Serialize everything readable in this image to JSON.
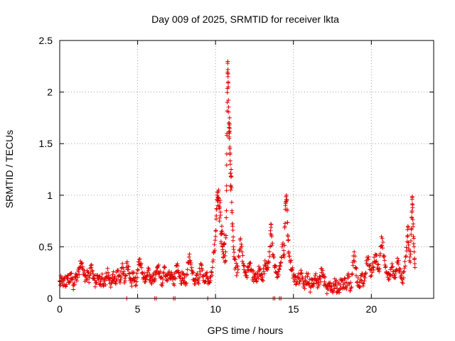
{
  "chart_data": {
    "type": "scatter",
    "title": "Day 009 of 2025, SRMTID for receiver lkta",
    "xlabel": "GPS time / hours",
    "ylabel": "SRMTID / TECUs",
    "xlim": [
      0,
      24
    ],
    "ylim": [
      0,
      2.5
    ],
    "xticks": [
      0,
      5,
      10,
      15,
      20
    ],
    "xtick_labels": [
      "0",
      "5",
      "10",
      "15",
      "20"
    ],
    "yticks": [
      0,
      0.5,
      1,
      1.5,
      2,
      2.5
    ],
    "ytick_labels": [
      "0",
      "0.5",
      "1",
      "1.5",
      "2",
      "2.5"
    ],
    "grid": true,
    "marker": "plus",
    "series": [
      {
        "name": "SRMTID",
        "color": "#e00000",
        "points": [
          [
            0.0,
            0.17
          ],
          [
            0.1,
            0.2
          ],
          [
            0.2,
            0.14
          ],
          [
            0.3,
            0.19
          ],
          [
            0.4,
            0.12
          ],
          [
            0.5,
            0.22
          ],
          [
            0.6,
            0.16
          ],
          [
            0.7,
            0.24
          ],
          [
            0.8,
            0.18
          ],
          [
            0.9,
            0.13
          ],
          [
            1.0,
            0.21
          ],
          [
            1.1,
            0.17
          ],
          [
            1.2,
            0.26
          ],
          [
            1.3,
            0.3
          ],
          [
            1.4,
            0.34
          ],
          [
            1.5,
            0.28
          ],
          [
            1.6,
            0.22
          ],
          [
            1.7,
            0.18
          ],
          [
            1.8,
            0.25
          ],
          [
            1.9,
            0.2
          ],
          [
            2.0,
            0.32
          ],
          [
            2.1,
            0.27
          ],
          [
            2.2,
            0.19
          ],
          [
            2.3,
            0.15
          ],
          [
            2.4,
            0.22
          ],
          [
            2.5,
            0.18
          ],
          [
            2.6,
            0.14
          ],
          [
            2.7,
            0.2
          ],
          [
            2.8,
            0.12
          ],
          [
            2.9,
            0.17
          ],
          [
            3.0,
            0.21
          ],
          [
            3.1,
            0.25
          ],
          [
            3.2,
            0.19
          ],
          [
            3.3,
            0.15
          ],
          [
            3.4,
            0.23
          ],
          [
            3.5,
            0.2
          ],
          [
            3.6,
            0.14
          ],
          [
            3.7,
            0.27
          ],
          [
            3.8,
            0.22
          ],
          [
            3.9,
            0.18
          ],
          [
            4.0,
            0.3
          ],
          [
            4.1,
            0.24
          ],
          [
            4.2,
            0.17
          ],
          [
            4.3,
            0.34
          ],
          [
            4.4,
            0.28
          ],
          [
            4.5,
            0.2
          ],
          [
            4.6,
            0.15
          ],
          [
            4.7,
            0.24
          ],
          [
            4.8,
            0.19
          ],
          [
            4.9,
            0.13
          ],
          [
            5.0,
            0.28
          ],
          [
            5.1,
            0.38
          ],
          [
            5.2,
            0.33
          ],
          [
            5.3,
            0.25
          ],
          [
            5.4,
            0.2
          ],
          [
            5.5,
            0.16
          ],
          [
            5.6,
            0.22
          ],
          [
            5.7,
            0.27
          ],
          [
            5.8,
            0.18
          ],
          [
            5.9,
            0.14
          ],
          [
            6.0,
            0.22
          ],
          [
            6.1,
            0.17
          ],
          [
            6.2,
            0.26
          ],
          [
            6.3,
            0.31
          ],
          [
            6.4,
            0.24
          ],
          [
            6.5,
            0.2
          ],
          [
            6.6,
            0.15
          ],
          [
            6.7,
            0.3
          ],
          [
            6.8,
            0.21
          ],
          [
            6.9,
            0.17
          ],
          [
            7.0,
            0.25
          ],
          [
            7.1,
            0.19
          ],
          [
            7.2,
            0.23
          ],
          [
            7.3,
            0.14
          ],
          [
            7.4,
            0.2
          ],
          [
            7.5,
            0.32
          ],
          [
            7.6,
            0.27
          ],
          [
            7.7,
            0.21
          ],
          [
            7.8,
            0.17
          ],
          [
            7.9,
            0.24
          ],
          [
            8.0,
            0.2
          ],
          [
            8.1,
            0.15
          ],
          [
            8.2,
            0.28
          ],
          [
            8.3,
            0.4
          ],
          [
            8.4,
            0.33
          ],
          [
            8.5,
            0.24
          ],
          [
            8.6,
            0.18
          ],
          [
            8.7,
            0.14
          ],
          [
            8.8,
            0.22
          ],
          [
            8.9,
            0.17
          ],
          [
            9.0,
            0.26
          ],
          [
            9.1,
            0.32
          ],
          [
            9.2,
            0.21
          ],
          [
            9.3,
            0.16
          ],
          [
            9.4,
            0.24
          ],
          [
            9.5,
            0.19
          ],
          [
            9.6,
            0.15
          ],
          [
            9.7,
            0.21
          ],
          [
            9.8,
            0.3
          ],
          [
            9.9,
            0.45
          ],
          [
            10.0,
            0.6
          ],
          [
            10.05,
            0.8
          ],
          [
            10.1,
            1.0
          ],
          [
            10.15,
            0.9
          ],
          [
            10.2,
            1.05
          ],
          [
            10.25,
            0.75
          ],
          [
            10.3,
            0.95
          ],
          [
            10.35,
            0.55
          ],
          [
            10.4,
            0.7
          ],
          [
            10.45,
            0.5
          ],
          [
            10.5,
            0.4
          ],
          [
            10.55,
            0.62
          ],
          [
            10.6,
            0.35
          ],
          [
            10.65,
            0.45
          ],
          [
            10.7,
            0.85
          ],
          [
            10.72,
            1.4
          ],
          [
            10.75,
            1.9
          ],
          [
            10.78,
            2.28
          ],
          [
            10.8,
            2.15
          ],
          [
            10.82,
            2.05
          ],
          [
            10.85,
            1.7
          ],
          [
            10.88,
            1.55
          ],
          [
            10.9,
            1.75
          ],
          [
            10.92,
            1.45
          ],
          [
            10.95,
            1.3
          ],
          [
            10.98,
            1.05
          ],
          [
            11.0,
            1.25
          ],
          [
            11.05,
            0.85
          ],
          [
            11.1,
            0.7
          ],
          [
            11.15,
            0.5
          ],
          [
            11.2,
            0.38
          ],
          [
            11.3,
            0.3
          ],
          [
            11.4,
            0.25
          ],
          [
            11.5,
            0.4
          ],
          [
            11.6,
            0.58
          ],
          [
            11.7,
            0.45
          ],
          [
            11.8,
            0.32
          ],
          [
            11.9,
            0.26
          ],
          [
            12.0,
            0.22
          ],
          [
            12.1,
            0.3
          ],
          [
            12.2,
            0.34
          ],
          [
            12.3,
            0.28
          ],
          [
            12.4,
            0.2
          ],
          [
            12.5,
            0.24
          ],
          [
            12.6,
            0.17
          ],
          [
            12.7,
            0.21
          ],
          [
            12.8,
            0.27
          ],
          [
            12.9,
            0.22
          ],
          [
            13.0,
            0.18
          ],
          [
            13.1,
            0.26
          ],
          [
            13.2,
            0.32
          ],
          [
            13.3,
            0.29
          ],
          [
            13.4,
            0.36
          ],
          [
            13.5,
            0.5
          ],
          [
            13.55,
            0.72
          ],
          [
            13.6,
            0.6
          ],
          [
            13.7,
            0.42
          ],
          [
            13.8,
            0.3
          ],
          [
            13.9,
            0.25
          ],
          [
            14.0,
            0.21
          ],
          [
            14.1,
            0.28
          ],
          [
            14.2,
            0.35
          ],
          [
            14.3,
            0.52
          ],
          [
            14.4,
            0.4
          ],
          [
            14.45,
            0.7
          ],
          [
            14.5,
            0.92
          ],
          [
            14.55,
            1.0
          ],
          [
            14.6,
            0.85
          ],
          [
            14.65,
            0.6
          ],
          [
            14.7,
            0.45
          ],
          [
            14.8,
            0.35
          ],
          [
            14.9,
            0.28
          ],
          [
            15.0,
            0.22
          ],
          [
            15.1,
            0.18
          ],
          [
            15.2,
            0.14
          ],
          [
            15.3,
            0.2
          ],
          [
            15.4,
            0.16
          ],
          [
            15.5,
            0.24
          ],
          [
            15.6,
            0.19
          ],
          [
            15.7,
            0.13
          ],
          [
            15.8,
            0.17
          ],
          [
            15.9,
            0.21
          ],
          [
            16.0,
            0.15
          ],
          [
            16.1,
            0.11
          ],
          [
            16.2,
            0.18
          ],
          [
            16.3,
            0.14
          ],
          [
            16.4,
            0.22
          ],
          [
            16.5,
            0.17
          ],
          [
            16.6,
            0.12
          ],
          [
            16.7,
            0.19
          ],
          [
            16.8,
            0.25
          ],
          [
            16.9,
            0.21
          ],
          [
            17.0,
            0.16
          ],
          [
            17.1,
            0.12
          ],
          [
            17.2,
            0.09
          ],
          [
            17.3,
            0.14
          ],
          [
            17.4,
            0.11
          ],
          [
            17.5,
            0.07
          ],
          [
            17.6,
            0.12
          ],
          [
            17.7,
            0.16
          ],
          [
            17.8,
            0.1
          ],
          [
            17.9,
            0.08
          ],
          [
            18.0,
            0.13
          ],
          [
            18.1,
            0.18
          ],
          [
            18.2,
            0.11
          ],
          [
            18.3,
            0.15
          ],
          [
            18.4,
            0.09
          ],
          [
            18.5,
            0.2
          ],
          [
            18.6,
            0.14
          ],
          [
            18.7,
            0.1
          ],
          [
            18.8,
            0.35
          ],
          [
            18.9,
            0.45
          ],
          [
            19.0,
            0.3
          ],
          [
            19.1,
            0.16
          ],
          [
            19.2,
            0.12
          ],
          [
            19.3,
            0.18
          ],
          [
            19.4,
            0.24
          ],
          [
            19.5,
            0.14
          ],
          [
            19.6,
            0.2
          ],
          [
            19.7,
            0.34
          ],
          [
            19.8,
            0.38
          ],
          [
            19.9,
            0.28
          ],
          [
            20.0,
            0.22
          ],
          [
            20.1,
            0.3
          ],
          [
            20.2,
            0.36
          ],
          [
            20.3,
            0.42
          ],
          [
            20.4,
            0.33
          ],
          [
            20.5,
            0.26
          ],
          [
            20.6,
            0.5
          ],
          [
            20.7,
            0.58
          ],
          [
            20.8,
            0.4
          ],
          [
            20.9,
            0.3
          ],
          [
            21.0,
            0.24
          ],
          [
            21.1,
            0.18
          ],
          [
            21.2,
            0.23
          ],
          [
            21.3,
            0.3
          ],
          [
            21.4,
            0.26
          ],
          [
            21.5,
            0.2
          ],
          [
            21.6,
            0.28
          ],
          [
            21.7,
            0.35
          ],
          [
            21.8,
            0.29
          ],
          [
            21.9,
            0.22
          ],
          [
            22.0,
            0.18
          ],
          [
            22.1,
            0.26
          ],
          [
            22.2,
            0.4
          ],
          [
            22.3,
            0.55
          ],
          [
            22.35,
            0.7
          ],
          [
            22.4,
            0.48
          ],
          [
            22.5,
            0.35
          ],
          [
            22.55,
            0.62
          ],
          [
            22.6,
            0.78
          ],
          [
            22.62,
            0.98
          ],
          [
            22.65,
            0.88
          ],
          [
            22.7,
            0.6
          ],
          [
            22.75,
            0.45
          ],
          [
            22.8,
            0.3
          ]
        ],
        "baseline_points": [
          [
            4.3,
            0.0
          ],
          [
            6.1,
            0.0
          ],
          [
            6.2,
            0.0
          ],
          [
            7.3,
            0.0
          ],
          [
            7.4,
            0.0
          ],
          [
            9.5,
            0.0
          ],
          [
            13.7,
            0.0
          ],
          [
            13.8,
            0.0
          ],
          [
            14.1,
            0.0
          ],
          [
            14.2,
            0.0
          ]
        ]
      }
    ]
  }
}
